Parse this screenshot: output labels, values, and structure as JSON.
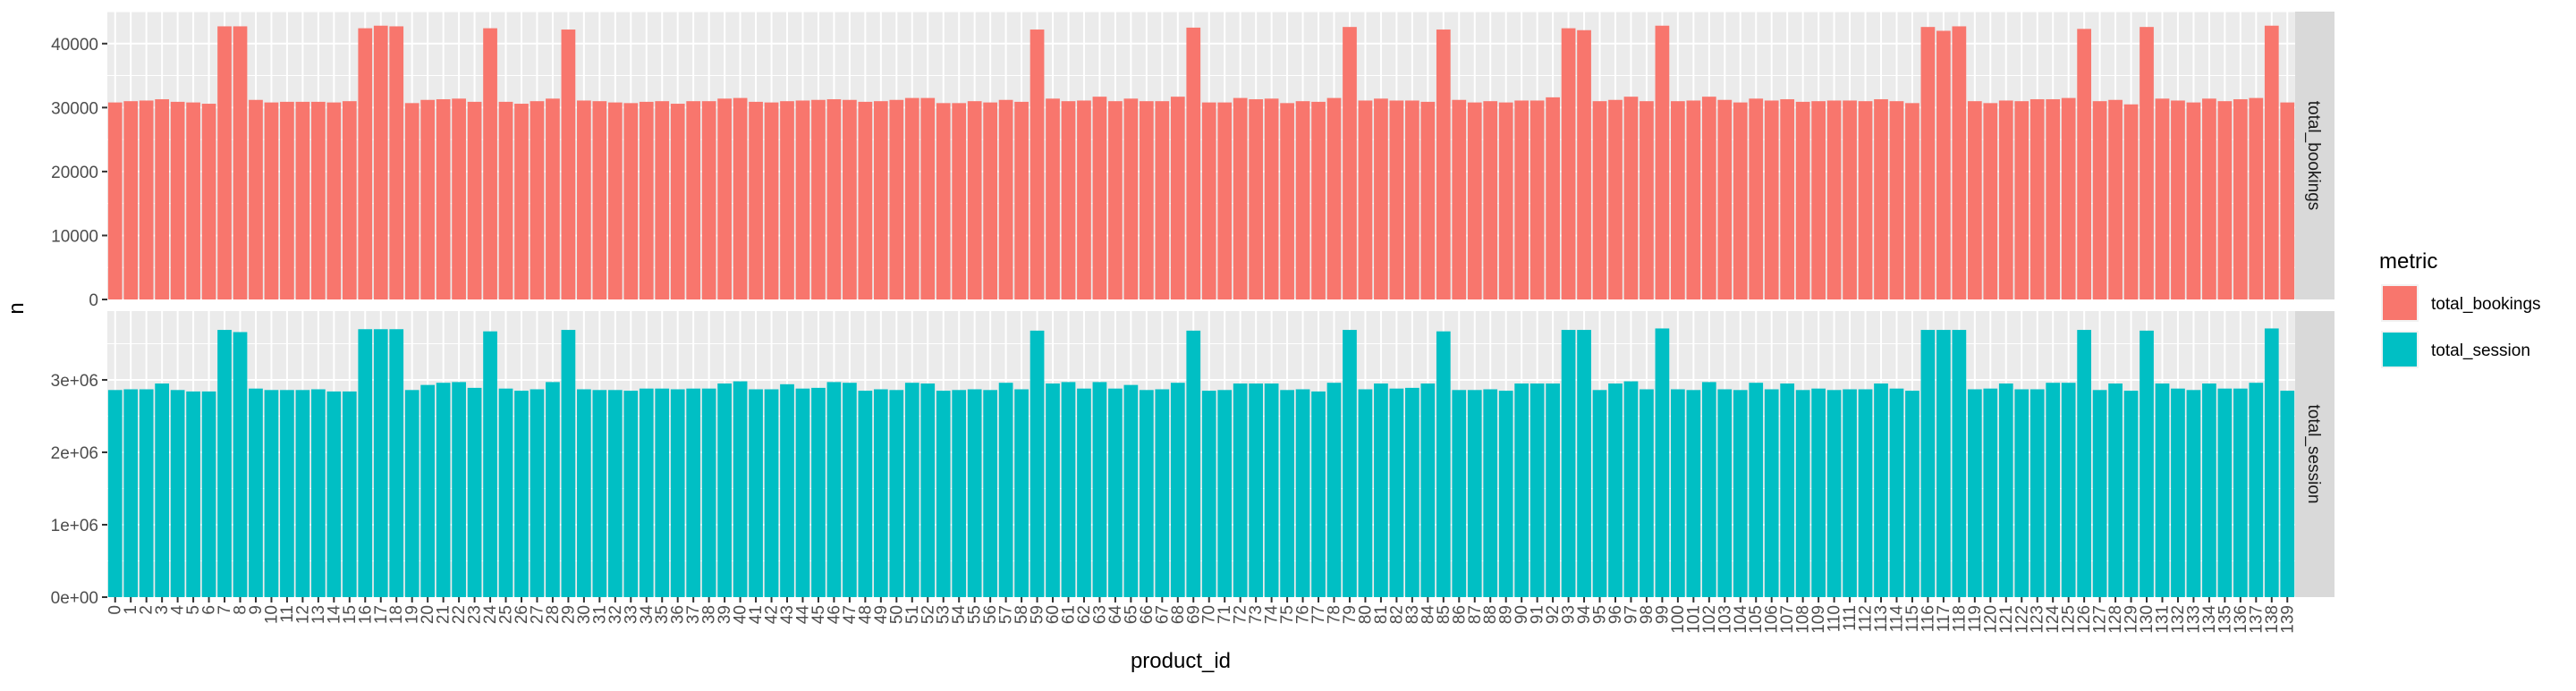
{
  "chart_data": {
    "type": "bar",
    "xlabel": "product_id",
    "ylabel": "n",
    "legend": {
      "title": "metric",
      "placement": "right",
      "entries": [
        {
          "label": "total_bookings",
          "color": "#F8766D"
        },
        {
          "label": "total_session",
          "color": "#00BFC4"
        }
      ]
    },
    "grid": true,
    "categories": [
      "0",
      "1",
      "2",
      "3",
      "4",
      "5",
      "6",
      "7",
      "8",
      "9",
      "10",
      "11",
      "12",
      "13",
      "14",
      "15",
      "16",
      "17",
      "18",
      "19",
      "20",
      "21",
      "22",
      "23",
      "24",
      "25",
      "26",
      "27",
      "28",
      "29",
      "30",
      "31",
      "32",
      "33",
      "34",
      "35",
      "36",
      "37",
      "38",
      "39",
      "40",
      "41",
      "42",
      "43",
      "44",
      "45",
      "46",
      "47",
      "48",
      "49",
      "50",
      "51",
      "52",
      "53",
      "54",
      "55",
      "56",
      "57",
      "58",
      "59",
      "60",
      "61",
      "62",
      "63",
      "64",
      "65",
      "66",
      "67",
      "68",
      "69",
      "70",
      "71",
      "72",
      "73",
      "74",
      "75",
      "76",
      "77",
      "78",
      "79",
      "80",
      "81",
      "82",
      "83",
      "84",
      "85",
      "86",
      "87",
      "88",
      "89",
      "90",
      "91",
      "92",
      "93",
      "94",
      "95",
      "96",
      "97",
      "98",
      "99",
      "100",
      "101",
      "102",
      "103",
      "104",
      "105",
      "106",
      "107",
      "108",
      "109",
      "110",
      "111",
      "112",
      "113",
      "114",
      "115",
      "116",
      "117",
      "118",
      "119",
      "120",
      "121",
      "122",
      "123",
      "124",
      "125",
      "126",
      "127",
      "128",
      "129",
      "130",
      "131",
      "132",
      "133",
      "134",
      "135",
      "136",
      "137",
      "138",
      "139"
    ],
    "panels": [
      {
        "strip": "total_bookings",
        "color": "#F8766D",
        "ylim": [
          0,
          45000
        ],
        "yticks": [
          0,
          10000,
          20000,
          30000,
          40000
        ],
        "ytick_labels": [
          "0",
          "10000",
          "20000",
          "30000",
          "40000"
        ],
        "values": [
          30800,
          31000,
          31100,
          31300,
          30900,
          30800,
          30600,
          42700,
          42700,
          31200,
          30800,
          30900,
          30900,
          30900,
          30800,
          31000,
          42400,
          42800,
          42700,
          30700,
          31200,
          31300,
          31400,
          30900,
          42400,
          30900,
          30600,
          31000,
          31400,
          42200,
          31100,
          31000,
          30800,
          30700,
          30900,
          31000,
          30600,
          31000,
          31000,
          31400,
          31500,
          30900,
          30800,
          31000,
          31100,
          31200,
          31300,
          31200,
          30900,
          31000,
          31200,
          31500,
          31500,
          30700,
          30700,
          31000,
          30800,
          31200,
          30900,
          42200,
          31400,
          31000,
          31100,
          31700,
          31000,
          31400,
          31000,
          31000,
          31700,
          42500,
          30800,
          30800,
          31500,
          31300,
          31400,
          30700,
          31000,
          30900,
          31500,
          42600,
          31100,
          31400,
          31100,
          31100,
          30900,
          42200,
          31200,
          30800,
          31000,
          30800,
          31100,
          31100,
          31600,
          42400,
          42100,
          31000,
          31200,
          31700,
          31000,
          42800,
          31000,
          31100,
          31700,
          31200,
          30800,
          31400,
          31100,
          31300,
          30900,
          31000,
          31100,
          31100,
          31000,
          31300,
          31000,
          30700,
          42600,
          42000,
          42700,
          31000,
          30700,
          31100,
          31000,
          31300,
          31300,
          31500,
          42300,
          31000,
          31200,
          30500,
          42600,
          31400,
          31100,
          30800,
          31400,
          31000,
          31300,
          31500,
          42800,
          30800
        ]
      },
      {
        "strip": "total_session",
        "color": "#00BFC4",
        "ylim": [
          0,
          3950000
        ],
        "yticks": [
          0,
          1000000,
          2000000,
          3000000
        ],
        "ytick_labels": [
          "0e+00",
          "1e+06",
          "2e+06",
          "3e+06"
        ],
        "values": [
          2860000,
          2870000,
          2870000,
          2950000,
          2860000,
          2840000,
          2840000,
          3690000,
          3660000,
          2880000,
          2860000,
          2860000,
          2860000,
          2870000,
          2840000,
          2840000,
          3700000,
          3700000,
          3700000,
          2860000,
          2930000,
          2960000,
          2970000,
          2890000,
          3670000,
          2880000,
          2850000,
          2870000,
          2970000,
          3690000,
          2870000,
          2860000,
          2860000,
          2850000,
          2880000,
          2880000,
          2870000,
          2880000,
          2880000,
          2950000,
          2980000,
          2870000,
          2870000,
          2940000,
          2880000,
          2890000,
          2970000,
          2960000,
          2850000,
          2870000,
          2860000,
          2960000,
          2950000,
          2850000,
          2860000,
          2870000,
          2860000,
          2960000,
          2870000,
          3680000,
          2950000,
          2970000,
          2880000,
          2970000,
          2880000,
          2930000,
          2860000,
          2870000,
          2960000,
          3680000,
          2850000,
          2860000,
          2950000,
          2950000,
          2950000,
          2860000,
          2870000,
          2840000,
          2960000,
          3690000,
          2870000,
          2950000,
          2880000,
          2890000,
          2950000,
          3670000,
          2860000,
          2860000,
          2870000,
          2850000,
          2950000,
          2950000,
          2950000,
          3690000,
          3690000,
          2860000,
          2950000,
          2980000,
          2870000,
          3710000,
          2870000,
          2860000,
          2970000,
          2870000,
          2860000,
          2960000,
          2870000,
          2950000,
          2860000,
          2880000,
          2860000,
          2870000,
          2870000,
          2950000,
          2880000,
          2850000,
          3690000,
          3690000,
          3690000,
          2870000,
          2880000,
          2950000,
          2870000,
          2870000,
          2960000,
          2960000,
          3690000,
          2860000,
          2950000,
          2850000,
          3680000,
          2950000,
          2880000,
          2860000,
          2950000,
          2880000,
          2880000,
          2960000,
          3710000,
          2850000
        ]
      }
    ]
  }
}
